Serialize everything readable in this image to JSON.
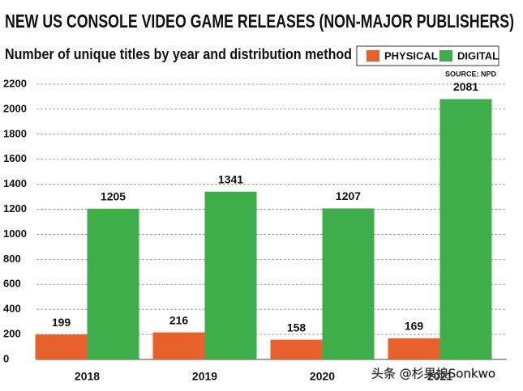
{
  "chart_data": {
    "type": "bar",
    "title": "NEW US CONSOLE VIDEO GAME RELEASES (NON-MAJOR PUBLISHERS)",
    "subtitle": "Number of unique titles by year and distribution method",
    "source": "SOURCE: NPD",
    "watermark": "头条 @杉果娘Sonkwo",
    "categories": [
      "2018",
      "2019",
      "2020",
      "2021"
    ],
    "series": [
      {
        "name": "PHYSICAL",
        "color": "#e8612c",
        "values": [
          199,
          216,
          158,
          169
        ]
      },
      {
        "name": "DIGITAL",
        "color": "#3dae49",
        "values": [
          1205,
          1341,
          1207,
          2081
        ]
      }
    ],
    "ylim": [
      0,
      2200
    ],
    "yticks": [
      0,
      200,
      400,
      600,
      800,
      1000,
      1200,
      1400,
      1600,
      1800,
      2000,
      2200
    ],
    "grid": true,
    "legend": "top-right"
  }
}
